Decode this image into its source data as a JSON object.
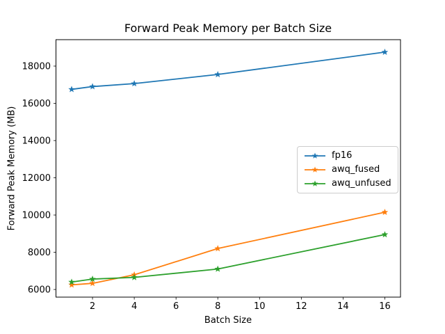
{
  "chart_data": {
    "type": "line",
    "title": "Forward Peak Memory per Batch Size",
    "xlabel": "Batch Size",
    "ylabel": "Forward Peak Memory (MB)",
    "x": [
      1,
      2,
      4,
      8,
      16
    ],
    "series": [
      {
        "name": "fp16",
        "color": "#1f77b4",
        "marker": "star",
        "values": [
          16750,
          16900,
          17060,
          17550,
          18750
        ]
      },
      {
        "name": "awq_fused",
        "color": "#ff7f0e",
        "marker": "star",
        "values": [
          6250,
          6330,
          6790,
          8200,
          10150
        ]
      },
      {
        "name": "awq_unfused",
        "color": "#2ca02c",
        "marker": "star",
        "values": [
          6400,
          6560,
          6650,
          7100,
          8950
        ]
      }
    ],
    "x_ticks": [
      2,
      4,
      6,
      8,
      10,
      12,
      14,
      16
    ],
    "y_ticks": [
      6000,
      8000,
      10000,
      12000,
      14000,
      16000,
      18000
    ],
    "x_range": [
      0.25,
      16.75
    ],
    "y_range": [
      5590,
      19420
    ],
    "grid": false,
    "legend_position": "center right",
    "axis_color": "#000000",
    "background": "#ffffff"
  }
}
